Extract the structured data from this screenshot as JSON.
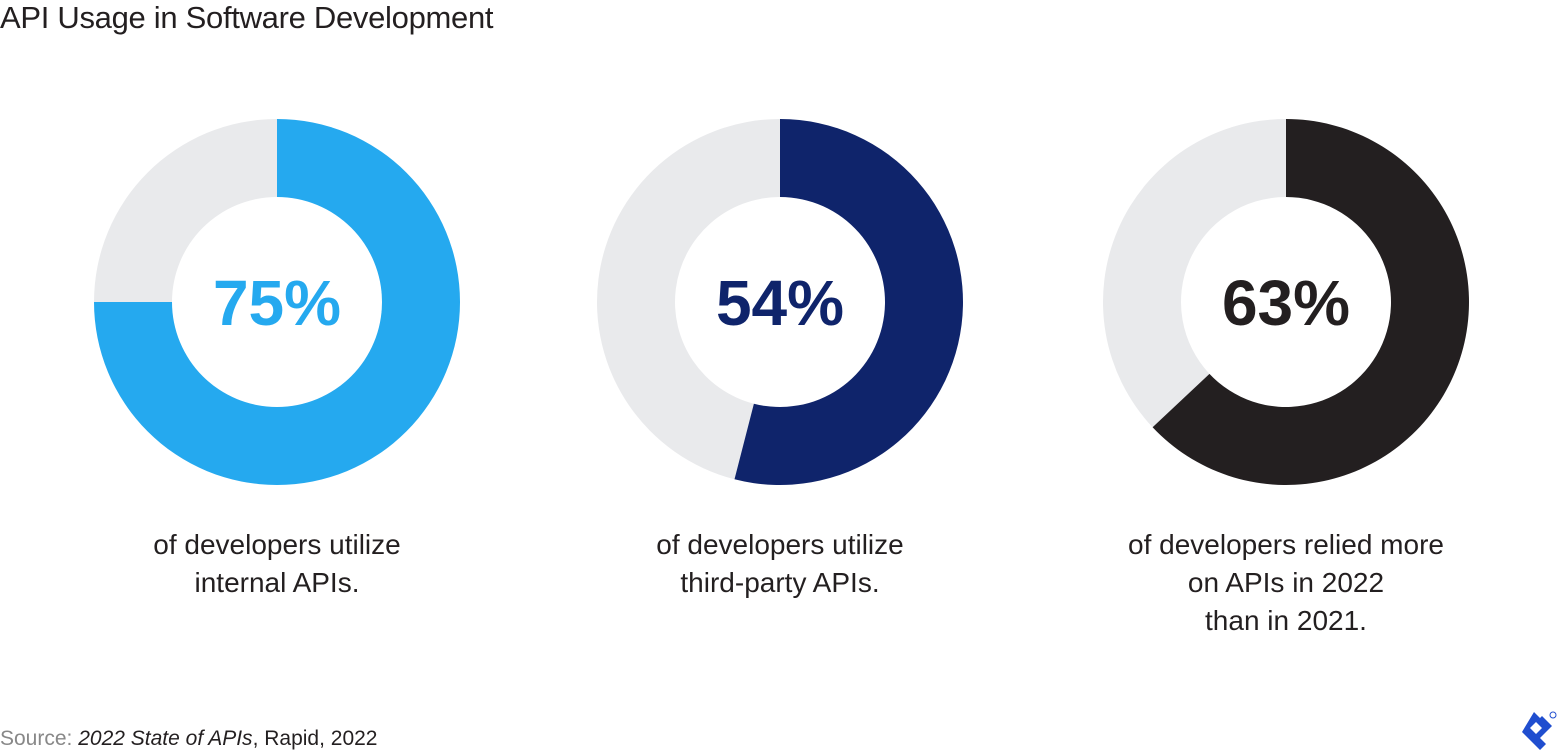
{
  "title": "API Usage in Software Development",
  "chart_data": {
    "type": "pie",
    "subtype": "donut",
    "charts": [
      {
        "value": 75,
        "label": "75%",
        "caption": [
          "of developers utilize",
          "internal APIs."
        ],
        "color": "#25a9ef"
      },
      {
        "value": 54,
        "label": "54%",
        "caption": [
          "of developers utilize",
          "third-party APIs."
        ],
        "color": "#0f246b"
      },
      {
        "value": 63,
        "label": "63%",
        "caption": [
          "of developers relied more",
          "on APIs in 2022",
          "than in 2021."
        ],
        "color": "#231f20"
      }
    ],
    "remainder_color": "#e9eaec"
  },
  "source": {
    "label": "Source:",
    "title": "2022 State of APIs",
    "rest": ", Rapid, 2022"
  },
  "logo": {
    "brand_color": "#204ecf"
  }
}
